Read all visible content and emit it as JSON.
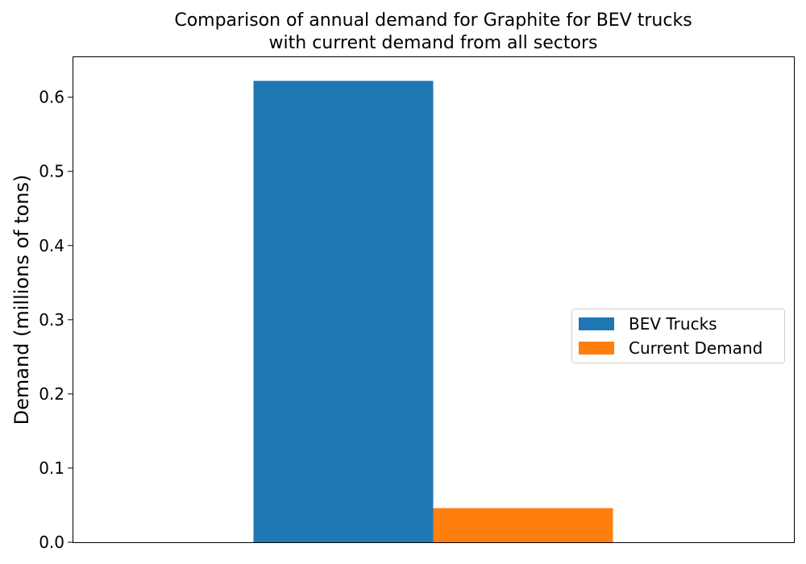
{
  "chart_data": {
    "type": "bar",
    "title_line1": "Comparison of annual demand for Graphite for BEV trucks",
    "title_line2": "with current demand from all sectors",
    "ylabel": "Demand (millions of tons)",
    "xlabel": "",
    "ylim": [
      0,
      0.655
    ],
    "yticks": [
      "0.0",
      "0.1",
      "0.2",
      "0.3",
      "0.4",
      "0.5",
      "0.6"
    ],
    "categories": [
      ""
    ],
    "series": [
      {
        "name": "BEV Trucks",
        "color": "#1f77b4",
        "values": [
          0.622
        ]
      },
      {
        "name": "Current Demand",
        "color": "#ff7f0e",
        "values": [
          0.046
        ]
      }
    ],
    "legend_position": "center-right",
    "grid": false
  }
}
